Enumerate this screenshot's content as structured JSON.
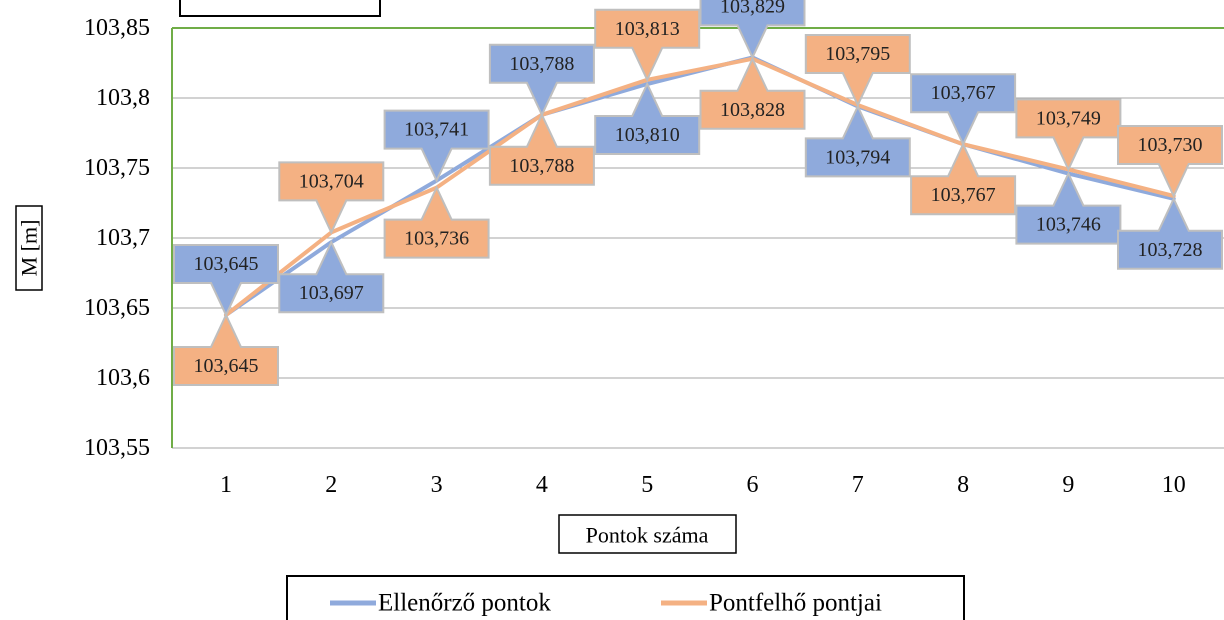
{
  "chart_data": {
    "type": "line",
    "categories": [
      "1",
      "2",
      "3",
      "4",
      "5",
      "6",
      "7",
      "8",
      "9",
      "10"
    ],
    "series": [
      {
        "name": "Ellenőrző pontok",
        "color": "#8faadc",
        "values": [
          103.645,
          103.697,
          103.741,
          103.788,
          103.81,
          103.829,
          103.794,
          103.767,
          103.746,
          103.728
        ],
        "labels": [
          "103,645",
          "103,697",
          "103,741",
          "103,788",
          "103,810",
          "103,829",
          "103,794",
          "103,767",
          "103,746",
          "103,728"
        ],
        "label_placement": [
          "above",
          "below",
          "above",
          "above",
          "below",
          "above",
          "below",
          "above",
          "below",
          "below"
        ]
      },
      {
        "name": "Pontfelhő pontjai",
        "color": "#f4b183",
        "values": [
          103.645,
          103.704,
          103.736,
          103.788,
          103.813,
          103.828,
          103.795,
          103.767,
          103.749,
          103.73
        ],
        "labels": [
          "103,645",
          "103,704",
          "103,736",
          "103,788",
          "103,813",
          "103,828",
          "103,795",
          "103,767",
          "103,749",
          "103,730"
        ],
        "label_placement": [
          "below",
          "above",
          "below",
          "below",
          "above",
          "below",
          "above",
          "below",
          "above",
          "above"
        ]
      }
    ],
    "y_tick_labels": [
      "103,55",
      "103,6",
      "103,65",
      "103,7",
      "103,75",
      "103,8",
      "103,85"
    ],
    "y_ticks": [
      103.55,
      103.6,
      103.65,
      103.7,
      103.75,
      103.8,
      103.85
    ],
    "ylim": [
      103.55,
      103.85
    ],
    "xlabel": "Pontok száma",
    "ylabel": "M [m]",
    "grid": true,
    "legend_placement": "bottom",
    "colors": {
      "plot_border": "#70ad47",
      "gridline": "#a6a6a6",
      "label_border": "#bfbfbf"
    }
  }
}
